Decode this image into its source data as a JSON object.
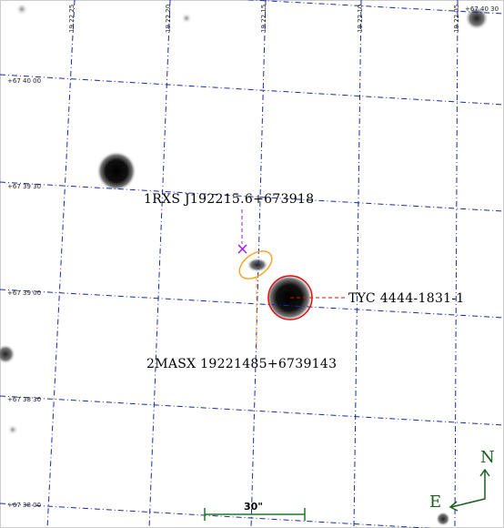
{
  "finder_chart": {
    "ra_ticks": [
      "19 22 25",
      "19 22 20",
      "19 22 15",
      "19 22 10",
      "19 22 05"
    ],
    "dec_ticks": [
      "+67 40 30",
      "+67 40 00",
      "+67 39 30",
      "+67 39 00",
      "+67 38 30",
      "+67 38 00"
    ],
    "sources": {
      "xray": "1RXS J192215.6+673918",
      "galaxy": "2MASX 19221485+6739143",
      "star": "TYC 4444-1831-1"
    },
    "scale_bar": "30\"",
    "compass": {
      "north": "N",
      "east": "E"
    },
    "colors": {
      "grid": "#1a2aa0",
      "xray_marker": "#9b1fd6",
      "galaxy_marker": "#f5a623",
      "star_marker": "#e01010",
      "scale": "#1b7a2b",
      "compass": "#1b5e20"
    }
  }
}
